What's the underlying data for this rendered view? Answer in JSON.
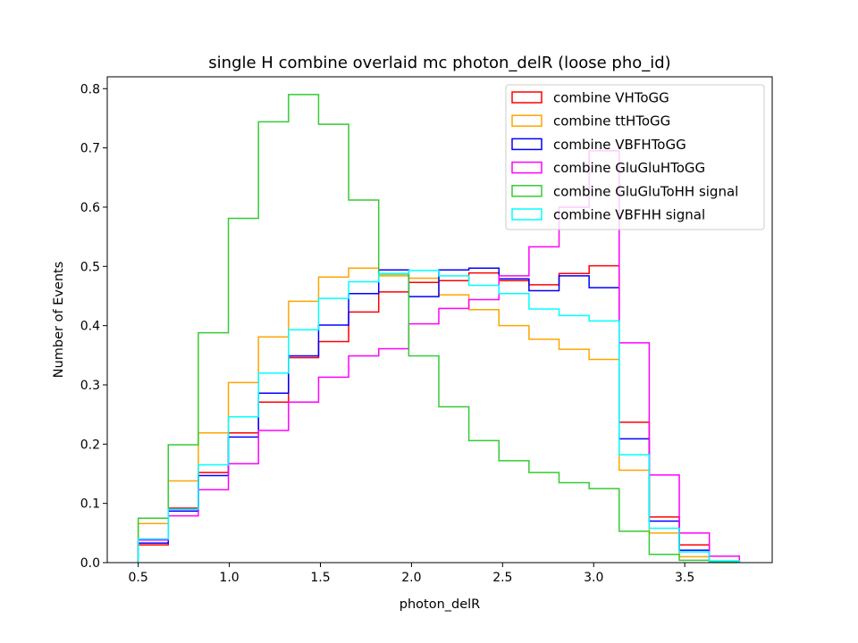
{
  "chart_data": {
    "type": "histogram",
    "title": "single H combine overlaid mc photon_delR (loose pho_id)",
    "xlabel": "photon_delR",
    "ylabel": "Number of Events",
    "xlim": [
      0.33,
      3.98
    ],
    "ylim": [
      0,
      0.82
    ],
    "xticks": [
      "0.5",
      "1.0",
      "1.5",
      "2.0",
      "2.5",
      "3.0",
      "3.5"
    ],
    "yticks": [
      "0.0",
      "0.1",
      "0.2",
      "0.3",
      "0.4",
      "0.5",
      "0.6",
      "0.7",
      "0.8"
    ],
    "bin_edges": [
      0.5,
      0.665,
      0.83,
      0.995,
      1.16,
      1.325,
      1.49,
      1.655,
      1.82,
      1.985,
      2.15,
      2.315,
      2.48,
      2.645,
      2.81,
      2.975,
      3.14,
      3.305,
      3.47,
      3.635,
      3.8
    ],
    "legend_position": "upper right",
    "series": [
      {
        "name": "combine VHToGG",
        "color": "#ff0000",
        "values": [
          0.03,
          0.092,
          0.152,
          0.219,
          0.271,
          0.346,
          0.373,
          0.423,
          0.457,
          0.473,
          0.476,
          0.489,
          0.476,
          0.469,
          0.488,
          0.501,
          0.237,
          0.077,
          0.03,
          0.002
        ]
      },
      {
        "name": "combine ttHToGG",
        "color": "#ffa500",
        "values": [
          0.066,
          0.138,
          0.219,
          0.304,
          0.381,
          0.441,
          0.482,
          0.497,
          0.484,
          0.48,
          0.452,
          0.427,
          0.4,
          0.377,
          0.36,
          0.343,
          0.156,
          0.05,
          0.01,
          0.002
        ]
      },
      {
        "name": "combine VBFHToGG",
        "color": "#0000ff",
        "values": [
          0.033,
          0.087,
          0.147,
          0.212,
          0.286,
          0.349,
          0.401,
          0.454,
          0.494,
          0.449,
          0.494,
          0.497,
          0.479,
          0.459,
          0.484,
          0.464,
          0.209,
          0.07,
          0.021,
          0.002
        ]
      },
      {
        "name": "combine GluGluHToGG",
        "color": "#ff00ff",
        "values": [
          0.038,
          0.079,
          0.123,
          0.167,
          0.223,
          0.271,
          0.313,
          0.349,
          0.361,
          0.403,
          0.429,
          0.444,
          0.484,
          0.533,
          0.6,
          0.695,
          0.371,
          0.148,
          0.05,
          0.011
        ]
      },
      {
        "name": "combine GluGluToHH signal",
        "color": "#33cc33",
        "values": [
          0.075,
          0.199,
          0.388,
          0.581,
          0.744,
          0.79,
          0.74,
          0.612,
          0.487,
          0.349,
          0.263,
          0.206,
          0.172,
          0.152,
          0.135,
          0.125,
          0.053,
          0.014,
          0.004,
          0.001
        ]
      },
      {
        "name": "combine VBFHH signal",
        "color": "#00ffff",
        "values": [
          0.04,
          0.09,
          0.165,
          0.246,
          0.32,
          0.393,
          0.446,
          0.474,
          0.488,
          0.493,
          0.484,
          0.468,
          0.454,
          0.428,
          0.417,
          0.408,
          0.182,
          0.058,
          0.018,
          0.003
        ]
      }
    ]
  }
}
